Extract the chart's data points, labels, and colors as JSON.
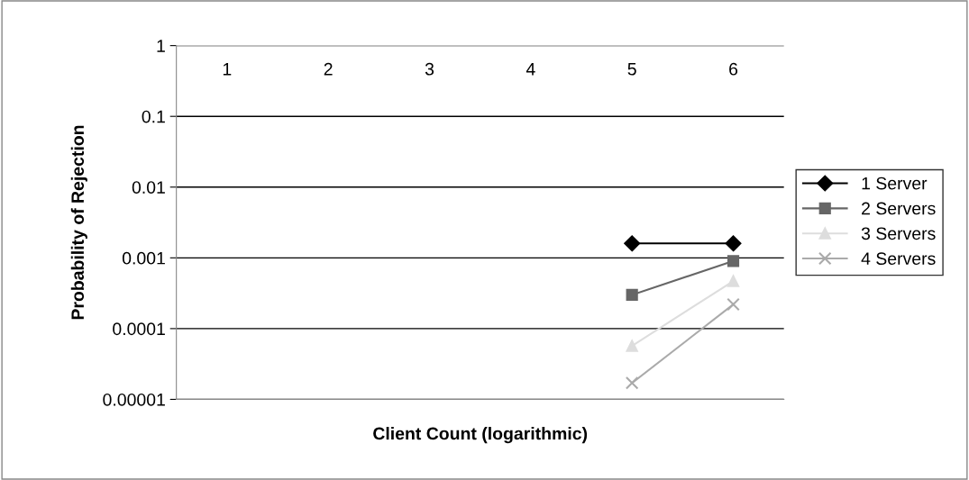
{
  "chart_data": {
    "type": "line",
    "xlabel": "Client Count (logarithmic)",
    "ylabel": "Probability of Rejection",
    "categories": [
      "1",
      "2",
      "3",
      "4",
      "5",
      "6"
    ],
    "log": "y",
    "ylim": [
      1e-05,
      1
    ],
    "yticks": [
      {
        "value": 1e-05,
        "label": "0.00001"
      },
      {
        "value": 0.0001,
        "label": "0.0001"
      },
      {
        "value": 0.001,
        "label": "0.001"
      },
      {
        "value": 0.01,
        "label": "0.01"
      },
      {
        "value": 0.1,
        "label": "0.1"
      },
      {
        "value": 1,
        "label": "1"
      }
    ],
    "grid": "y",
    "legend": "right",
    "line_style": "solid",
    "series": [
      {
        "name": "1 Server",
        "color": "#000000",
        "marker": "diamond",
        "values": [
          null,
          null,
          null,
          null,
          0.0016,
          0.0016
        ]
      },
      {
        "name": "2 Servers",
        "color": "#666666",
        "marker": "square",
        "values": [
          null,
          null,
          null,
          null,
          0.0003,
          0.0009
        ]
      },
      {
        "name": "3 Servers",
        "color": "#dddddd",
        "marker": "triangle",
        "values": [
          null,
          null,
          null,
          null,
          5.7e-05,
          0.00047
        ]
      },
      {
        "name": "4 Servers",
        "color": "#aaaaaa",
        "marker": "cross",
        "values": [
          null,
          null,
          null,
          null,
          1.7e-05,
          0.00022
        ]
      }
    ]
  }
}
